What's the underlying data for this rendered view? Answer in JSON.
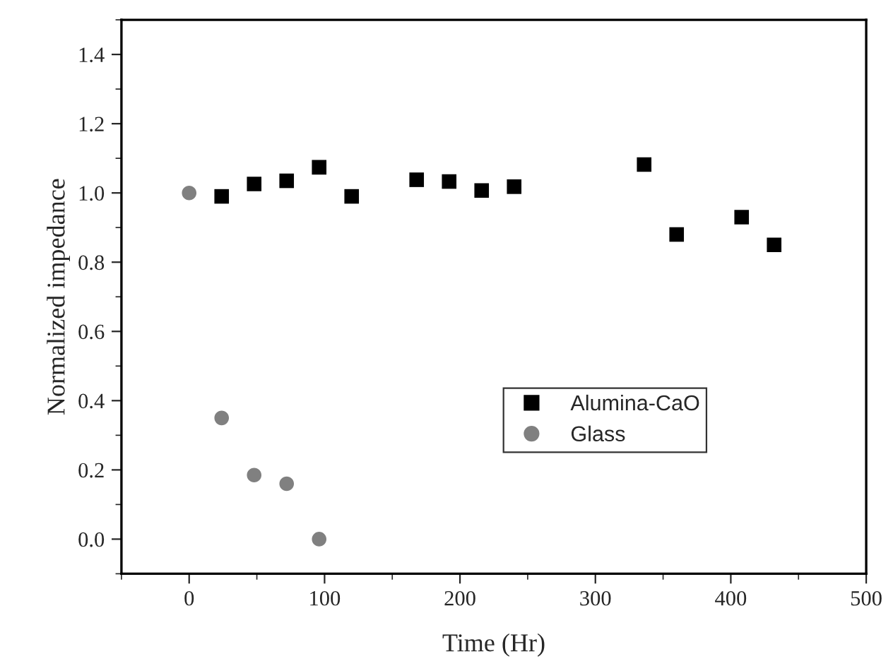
{
  "chart_data": {
    "type": "scatter",
    "xlabel": "Time (Hr)",
    "ylabel": "Normalized impedance",
    "xlim": [
      -50,
      500
    ],
    "xticks": [
      0,
      100,
      200,
      300,
      400,
      500
    ],
    "ylim": [
      -0.1,
      1.5
    ],
    "yticks": [
      {
        "value": 0.0,
        "label": "0.0"
      },
      {
        "value": 0.2,
        "label": "0.2"
      },
      {
        "value": 0.4,
        "label": "0.4"
      },
      {
        "value": 0.6,
        "label": "0.6"
      },
      {
        "value": 0.8,
        "label": "0.8"
      },
      {
        "value": 1.0,
        "label": "1.0"
      },
      {
        "value": 1.2,
        "label": "1.2"
      },
      {
        "value": 1.4,
        "label": "1.4"
      }
    ],
    "legend": "bottom right",
    "grid": false,
    "series": [
      {
        "name": "Alumina-CaO",
        "color": "#000000",
        "marker": "square",
        "x": [
          24,
          48,
          72,
          96,
          120,
          168,
          192,
          216,
          240,
          336,
          360,
          408,
          432
        ],
        "values": [
          0.99,
          1.026,
          1.035,
          1.074,
          0.99,
          1.038,
          1.033,
          1.007,
          1.018,
          1.082,
          0.88,
          0.93,
          0.85
        ]
      },
      {
        "name": "Glass",
        "color": "#808080",
        "marker": "circle",
        "x": [
          0,
          24,
          48,
          72,
          96
        ],
        "values": [
          1.0,
          0.35,
          0.185,
          0.16,
          0.0
        ]
      }
    ]
  }
}
